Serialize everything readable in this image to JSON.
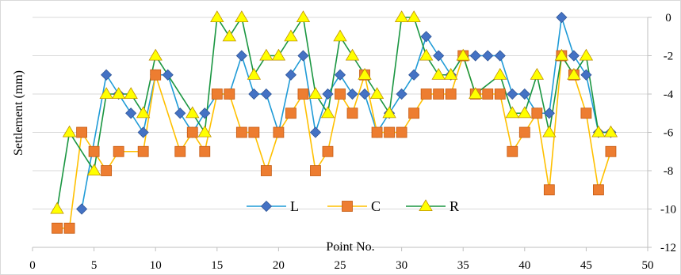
{
  "chart_data": {
    "type": "line",
    "title": "",
    "xlabel": "Point No.",
    "ylabel": "Settlement (mm)",
    "xlim": [
      0,
      50
    ],
    "ylim": [
      -12,
      0
    ],
    "xticks": [
      "0",
      "5",
      "10",
      "15",
      "20",
      "25",
      "30",
      "35",
      "40",
      "45",
      "50"
    ],
    "yticks": [
      "0",
      "-2",
      "-4",
      "-6",
      "-8",
      "-10",
      "-12"
    ],
    "y_axis_position": "right",
    "x_axis_position": "bottom",
    "grid": "horizontal",
    "legend": "bottom-center",
    "series": [
      {
        "name": "L",
        "color": "#1f9bd7",
        "marker": "diamond",
        "marker_color": "#4472c4",
        "points": [
          [
            4,
            -10
          ],
          [
            6,
            -3
          ],
          [
            7,
            -4
          ],
          [
            8,
            -5
          ],
          [
            9,
            -6
          ],
          [
            10,
            -3
          ],
          [
            11,
            -3
          ],
          [
            12,
            -5
          ],
          [
            13,
            -6
          ],
          [
            14,
            -5
          ],
          [
            15,
            -4
          ],
          [
            16,
            -4
          ],
          [
            17,
            -2
          ],
          [
            18,
            -4
          ],
          [
            19,
            -4
          ],
          [
            20,
            -6
          ],
          [
            21,
            -3
          ],
          [
            22,
            -2
          ],
          [
            23,
            -6
          ],
          [
            24,
            -4
          ],
          [
            25,
            -3
          ],
          [
            26,
            -4
          ],
          [
            27,
            -4
          ],
          [
            28,
            -6
          ],
          [
            29,
            -5
          ],
          [
            30,
            -4
          ],
          [
            31,
            -3
          ],
          [
            32,
            -1
          ],
          [
            33,
            -2
          ],
          [
            34,
            -3
          ],
          [
            35,
            -2
          ],
          [
            36,
            -2
          ],
          [
            37,
            -2
          ],
          [
            38,
            -2
          ],
          [
            39,
            -4
          ],
          [
            40,
            -4
          ],
          [
            41,
            -5
          ],
          [
            42,
            -5
          ],
          [
            43,
            0
          ],
          [
            44,
            -2
          ],
          [
            45,
            -3
          ],
          [
            46,
            -6
          ],
          [
            47,
            -6
          ]
        ]
      },
      {
        "name": "C",
        "color": "#ffc000",
        "marker": "square",
        "marker_color": "#ed7d31",
        "points": [
          [
            2,
            -11
          ],
          [
            3,
            -11
          ],
          [
            4,
            -6
          ],
          [
            5,
            -7
          ],
          [
            6,
            -8
          ],
          [
            7,
            -7
          ],
          [
            9,
            -7
          ],
          [
            10,
            -3
          ],
          [
            12,
            -7
          ],
          [
            13,
            -6
          ],
          [
            14,
            -7
          ],
          [
            15,
            -4
          ],
          [
            16,
            -4
          ],
          [
            17,
            -6
          ],
          [
            18,
            -6
          ],
          [
            19,
            -8
          ],
          [
            20,
            -6
          ],
          [
            21,
            -5
          ],
          [
            22,
            -4
          ],
          [
            23,
            -8
          ],
          [
            24,
            -7
          ],
          [
            25,
            -4
          ],
          [
            26,
            -5
          ],
          [
            27,
            -3
          ],
          [
            28,
            -6
          ],
          [
            29,
            -6
          ],
          [
            30,
            -6
          ],
          [
            31,
            -5
          ],
          [
            32,
            -4
          ],
          [
            33,
            -4
          ],
          [
            34,
            -4
          ],
          [
            35,
            -2
          ],
          [
            36,
            -4
          ],
          [
            37,
            -4
          ],
          [
            38,
            -4
          ],
          [
            39,
            -7
          ],
          [
            40,
            -6
          ],
          [
            41,
            -5
          ],
          [
            42,
            -9
          ],
          [
            43,
            -2
          ],
          [
            44,
            -3
          ],
          [
            45,
            -5
          ],
          [
            46,
            -9
          ],
          [
            47,
            -7
          ]
        ]
      },
      {
        "name": "R",
        "color": "#1a9641",
        "marker": "triangle",
        "marker_color": "#ffff00",
        "points": [
          [
            2,
            -10
          ],
          [
            3,
            -6
          ],
          [
            5,
            -8
          ],
          [
            6,
            -4
          ],
          [
            7,
            -4
          ],
          [
            8,
            -4
          ],
          [
            9,
            -5
          ],
          [
            10,
            -2
          ],
          [
            13,
            -5
          ],
          [
            14,
            -6
          ],
          [
            15,
            0
          ],
          [
            16,
            -1
          ],
          [
            17,
            0
          ],
          [
            18,
            -3
          ],
          [
            19,
            -2
          ],
          [
            20,
            -2
          ],
          [
            21,
            -1
          ],
          [
            22,
            0
          ],
          [
            23,
            -4
          ],
          [
            24,
            -5
          ],
          [
            25,
            -1
          ],
          [
            26,
            -2
          ],
          [
            27,
            -3
          ],
          [
            28,
            -4
          ],
          [
            29,
            -5
          ],
          [
            30,
            0
          ],
          [
            31,
            0
          ],
          [
            32,
            -2
          ],
          [
            33,
            -3
          ],
          [
            34,
            -3
          ],
          [
            35,
            -2
          ],
          [
            36,
            -4
          ],
          [
            38,
            -3
          ],
          [
            39,
            -5
          ],
          [
            40,
            -5
          ],
          [
            41,
            -3
          ],
          [
            42,
            -6
          ],
          [
            43,
            -2
          ],
          [
            44,
            -3
          ],
          [
            45,
            -2
          ],
          [
            46,
            -6
          ],
          [
            47,
            -6
          ]
        ]
      }
    ]
  }
}
